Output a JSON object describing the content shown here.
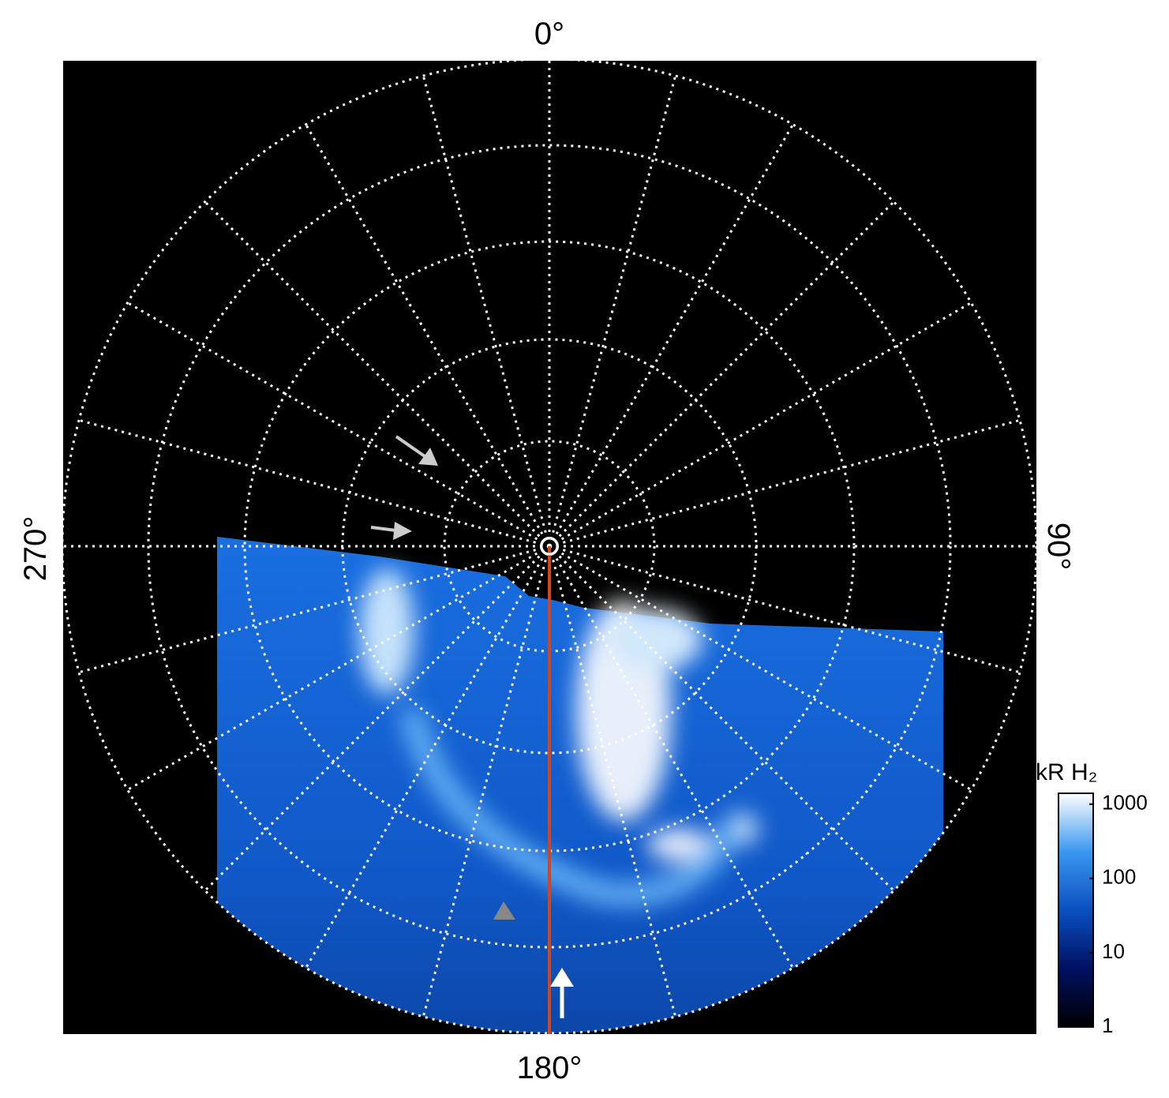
{
  "chart_data": {
    "type": "polar-image",
    "angle_labels": {
      "top": "0°",
      "right": "90°",
      "bottom": "180°",
      "left": "270°"
    },
    "colorbar": {
      "label": "kR H₂",
      "ticks": [
        1,
        10,
        100,
        1000
      ],
      "lim": [
        1,
        1400
      ],
      "log_scale": true,
      "colors": [
        "#000000",
        "#001060",
        "#0a50c0",
        "#3a98f0",
        "#ffffff"
      ]
    },
    "grid": true
  }
}
